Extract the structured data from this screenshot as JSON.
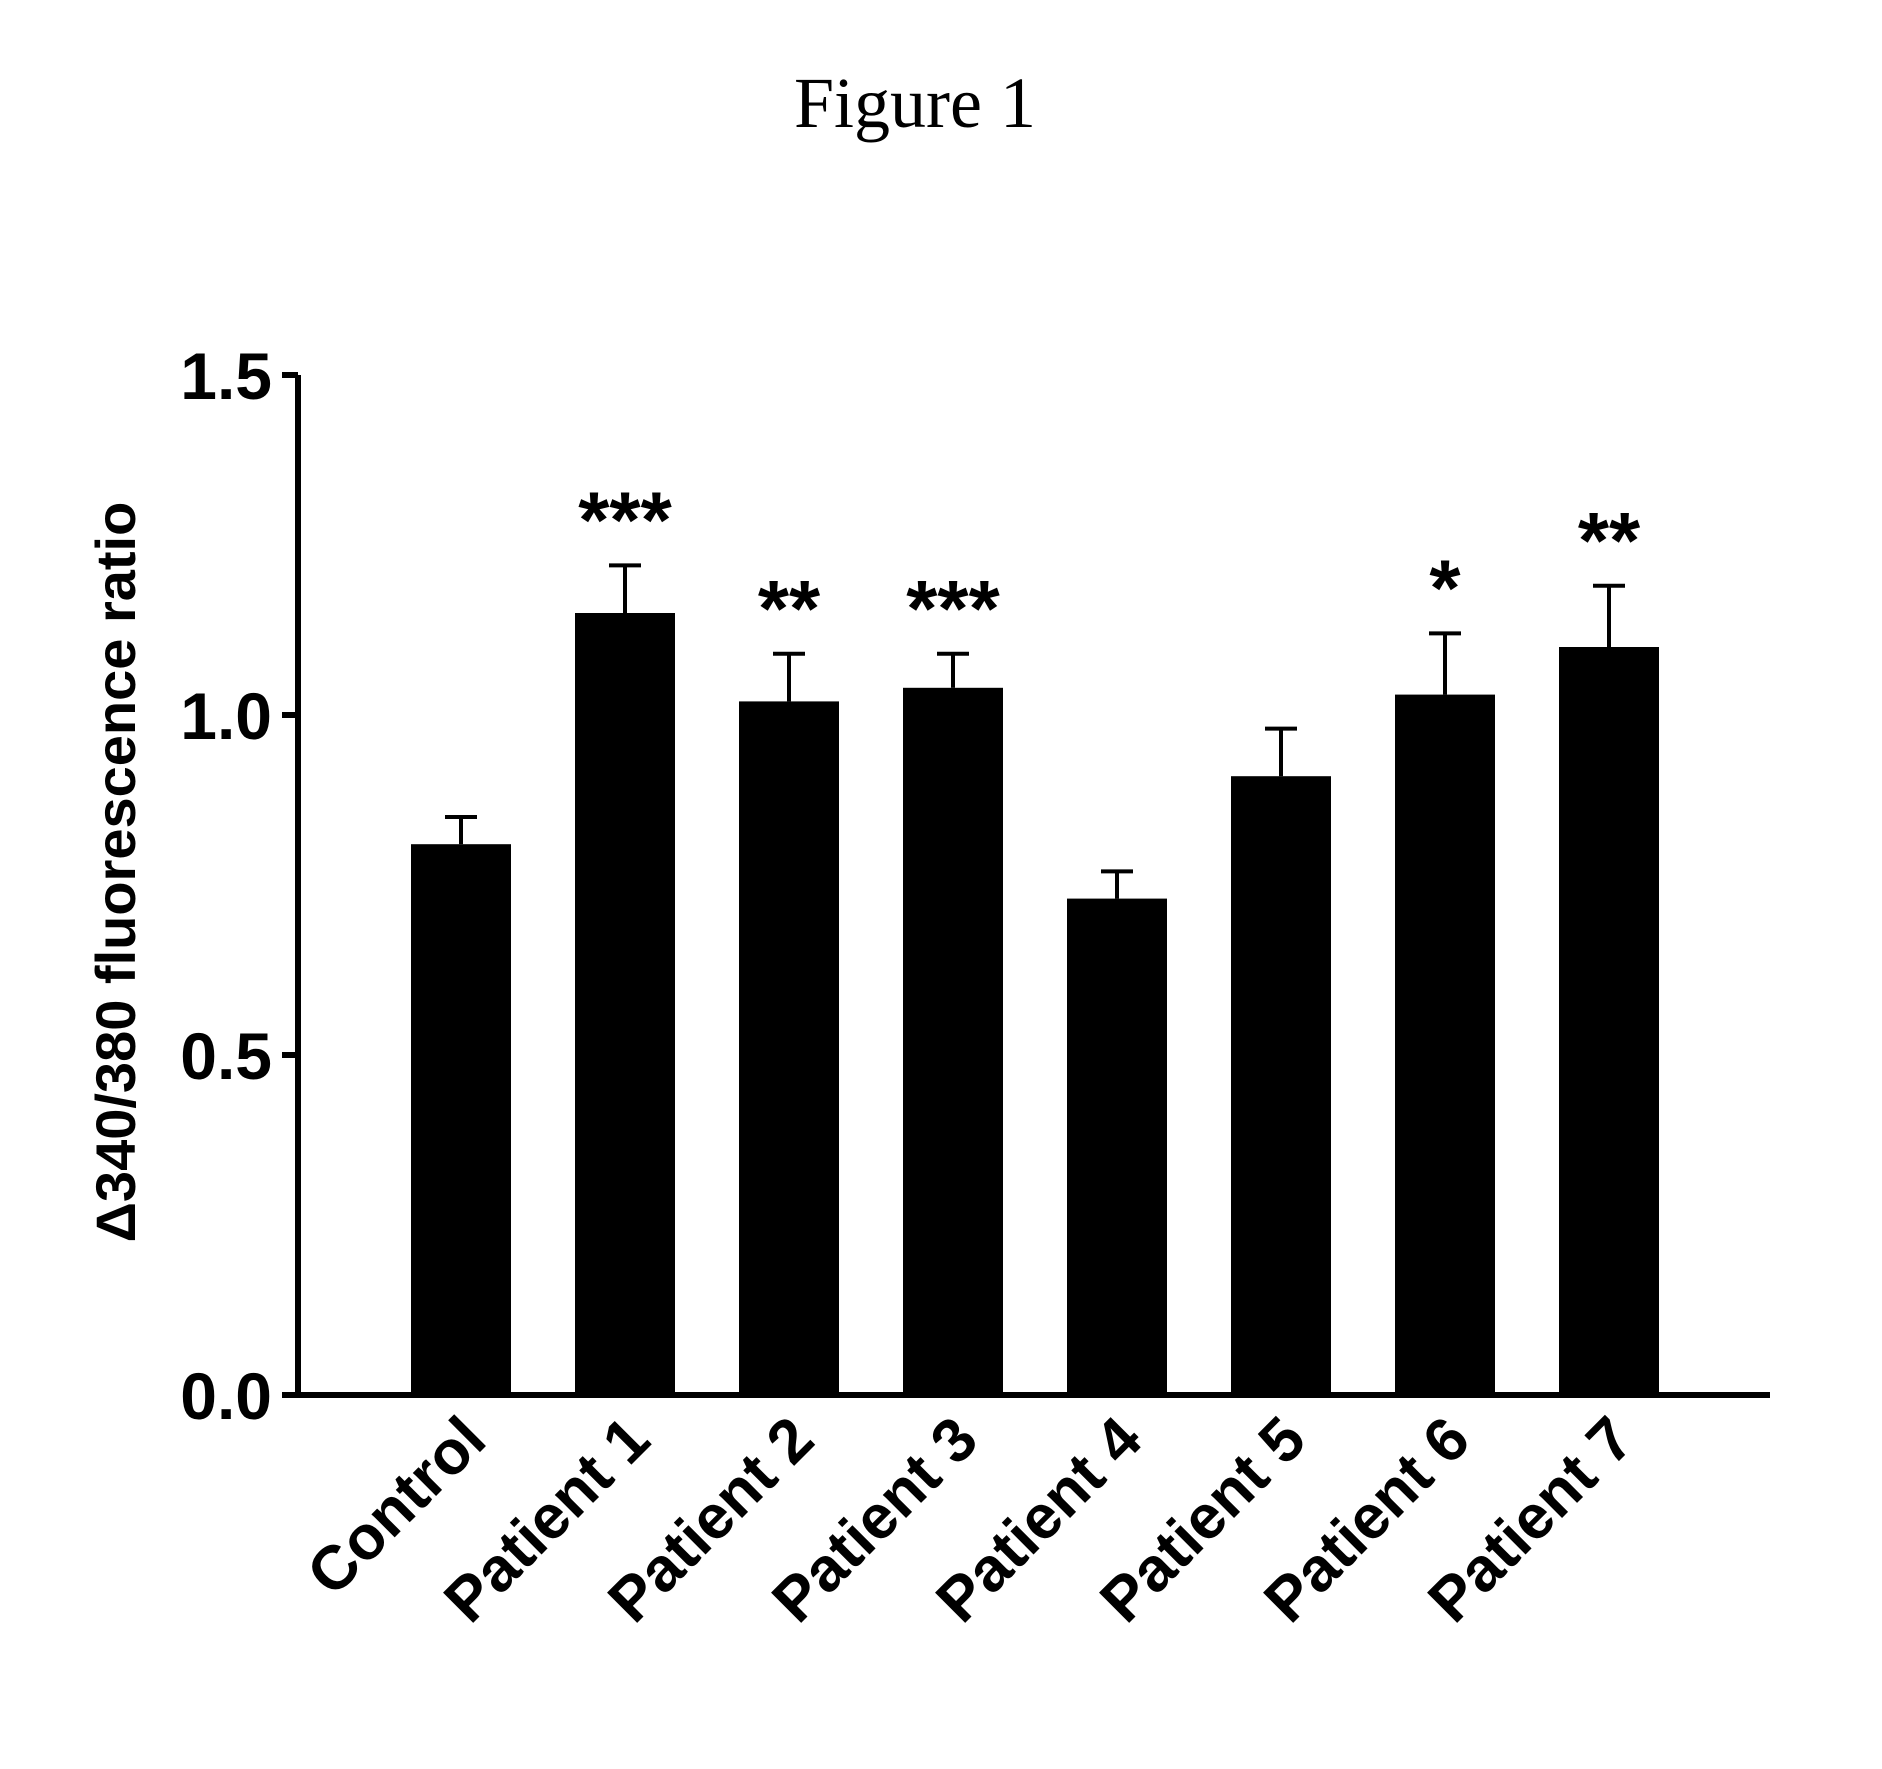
{
  "figure": {
    "title": "Figure 1"
  },
  "chart_data": {
    "type": "bar",
    "title": "",
    "xlabel": "",
    "ylabel": "Δ340/380 fluorescence ratio",
    "ylim": [
      0,
      1.5
    ],
    "yticks": [
      "0.0",
      "0.5",
      "1.0",
      "1.5"
    ],
    "categories": [
      "Control",
      "Patient 1",
      "Patient 2",
      "Patient 3",
      "Patient 4",
      "Patient 5",
      "Patient 6",
      "Patient 7"
    ],
    "values": [
      0.81,
      1.15,
      1.02,
      1.04,
      0.73,
      0.91,
      1.03,
      1.1
    ],
    "errors": [
      0.04,
      0.07,
      0.07,
      0.05,
      0.04,
      0.07,
      0.09,
      0.09
    ],
    "significance": [
      "",
      "***",
      "**",
      "***",
      "",
      "",
      "*",
      "**"
    ],
    "grid": false,
    "legend": "none",
    "bar_color": "#000000"
  }
}
